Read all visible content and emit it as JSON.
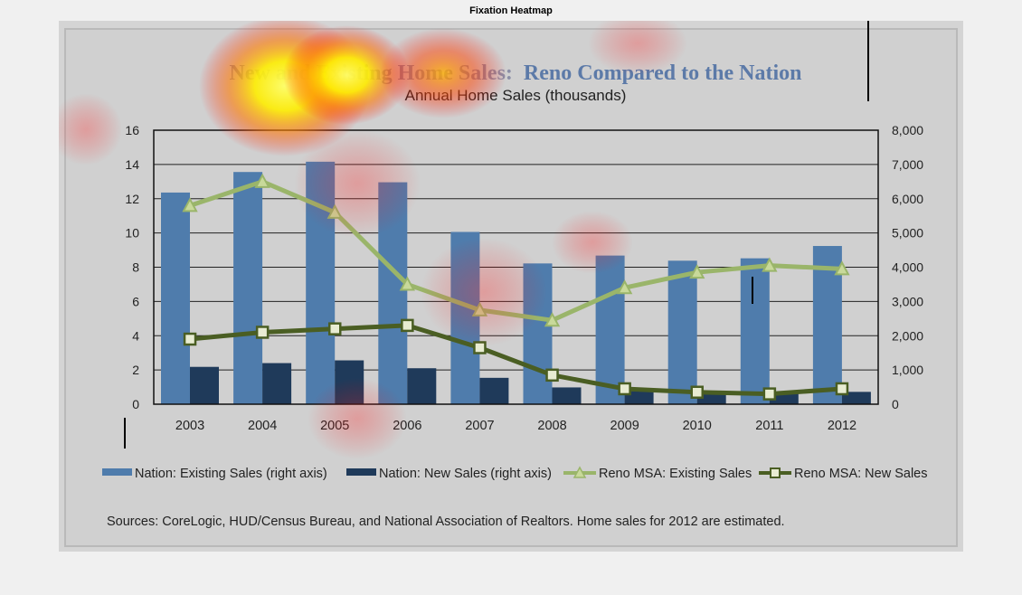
{
  "figure": {
    "title": "Fixation Heatmap"
  },
  "chart_data": {
    "type": "bar",
    "title_part1": "New and Existing Home Sales:",
    "title_part2": "Reno Compared to the Nation",
    "subtitle": "Annual Home Sales (thousands)",
    "categories": [
      "2003",
      "2004",
      "2005",
      "2006",
      "2007",
      "2008",
      "2009",
      "2010",
      "2011",
      "2012"
    ],
    "left_axis": {
      "ylim": [
        0,
        16
      ],
      "ticks": [
        "0",
        "2",
        "4",
        "6",
        "8",
        "10",
        "12",
        "14",
        "16"
      ]
    },
    "right_axis": {
      "ylim": [
        0,
        8000
      ],
      "ticks": [
        "0",
        "1,000",
        "2,000",
        "3,000",
        "4,000",
        "5,000",
        "6,000",
        "7,000",
        "8,000"
      ]
    },
    "series": [
      {
        "name": "Nation: Existing Sales (right axis)",
        "kind": "bar",
        "axis": "right",
        "color": "#4f7cac",
        "values": [
          6180,
          6780,
          7080,
          6480,
          5030,
          4110,
          4340,
          4190,
          4260,
          4620
        ]
      },
      {
        "name": "Nation: New Sales (right axis)",
        "kind": "bar",
        "axis": "right",
        "color": "#1f3a5a",
        "values": [
          1090,
          1200,
          1280,
          1050,
          770,
          490,
          380,
          320,
          310,
          360
        ]
      },
      {
        "name": "Reno MSA: Existing Sales",
        "kind": "line",
        "axis": "left",
        "color": "#9ab56a",
        "marker": "triangle",
        "values": [
          11.6,
          13.0,
          11.2,
          7.0,
          5.5,
          4.9,
          6.8,
          7.7,
          8.1,
          7.9
        ]
      },
      {
        "name": "Reno MSA: New Sales",
        "kind": "line",
        "axis": "left",
        "color": "#4a5e23",
        "marker": "square",
        "values": [
          3.8,
          4.2,
          4.4,
          4.6,
          3.3,
          1.7,
          0.9,
          0.7,
          0.6,
          0.9
        ]
      }
    ],
    "legend_position": "bottom",
    "grid": true,
    "source_note": "Sources: CoreLogic, HUD/Census  Bureau, and National Association of Realtors. Home sales for 2012 are estimated."
  },
  "heatmap": {
    "hot_color": "#ffff00",
    "warm_color": "#ff6a00",
    "cool_color": "#ff0000"
  }
}
